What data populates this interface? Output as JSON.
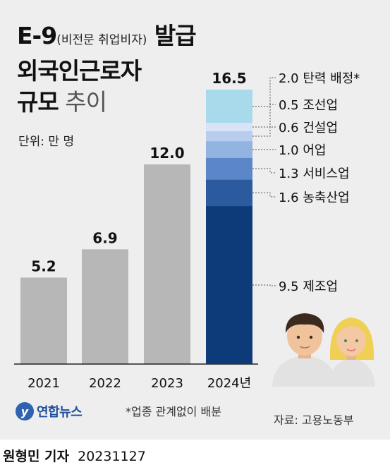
{
  "title": {
    "line1_main": "E-9",
    "line1_paren": "(비전문 취업비자)",
    "line1_end": " 발급",
    "line2": "외국인근로자",
    "line3_bold": "규모",
    "line3_light": " 추이"
  },
  "unit_label": "단위: 만 명",
  "chart_data": {
    "type": "bar",
    "categories": [
      "2021",
      "2022",
      "2023",
      "2024년"
    ],
    "values": [
      5.2,
      6.9,
      12.0,
      16.5
    ],
    "value_labels": [
      "5.2",
      "6.9",
      "12.0",
      "16.5"
    ],
    "ylim": [
      0,
      16.5
    ],
    "stacked_breakdown": {
      "category": "2024년",
      "segments": [
        {
          "label": "9.5 제조업",
          "value": 9.5,
          "color": "#0d3b7a"
        },
        {
          "label": "1.6 농축산업",
          "value": 1.6,
          "color": "#2b5b9e"
        },
        {
          "label": "1.3 서비스업",
          "value": 1.3,
          "color": "#5b87c8"
        },
        {
          "label": "1.0 어업",
          "value": 1.0,
          "color": "#93b4e0"
        },
        {
          "label": "0.6 건설업",
          "value": 0.6,
          "color": "#b8cdee"
        },
        {
          "label": "0.5 조선업",
          "value": 0.5,
          "color": "#d8e3f7"
        },
        {
          "label": "2.0 탄력 배정*",
          "value": 2.0,
          "color": "#a9daeb"
        }
      ]
    },
    "bar_color": "#b7b7b7"
  },
  "footnote": "*업종 관계없이 배분",
  "source": "자료: 고용노동부",
  "logo_text": "연합뉴스",
  "logo_mark": "y",
  "reporter": {
    "name": "원형민 기자",
    "date": "20231127"
  }
}
